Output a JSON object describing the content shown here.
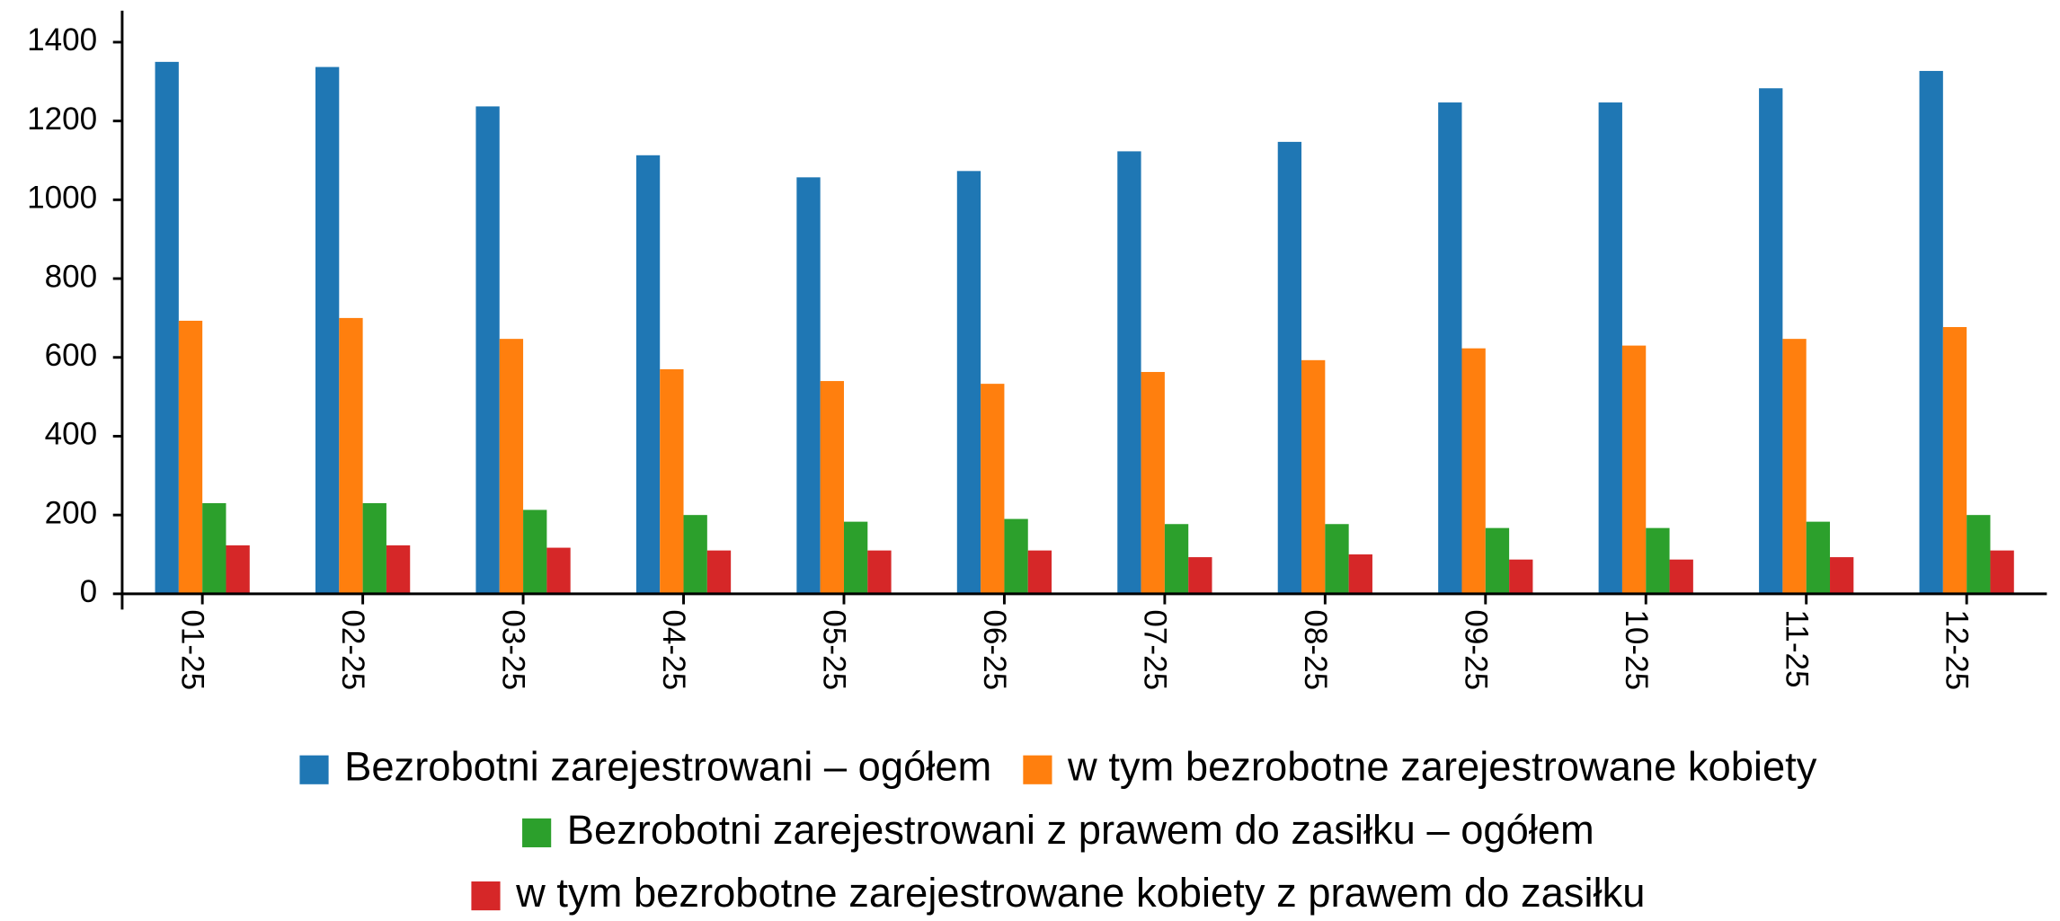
{
  "chart_data": {
    "type": "bar",
    "categories": [
      "01-25",
      "02-25",
      "03-25",
      "04-25",
      "05-25",
      "06-25",
      "07-25",
      "08-25",
      "09-25",
      "10-25",
      "11-25",
      "12-25"
    ],
    "series": [
      {
        "name": "Bezrobotni zarejestrowani – ogółem",
        "color": "#1f77b4",
        "values": [
          1350,
          1337,
          1237,
          1113,
          1057,
          1073,
          1123,
          1147,
          1247,
          1247,
          1283,
          1327
        ]
      },
      {
        "name": "w tym bezrobotne zarejestrowane kobiety",
        "color": "#ff7f0e",
        "values": [
          693,
          700,
          647,
          570,
          540,
          533,
          563,
          593,
          623,
          630,
          647,
          677
        ]
      },
      {
        "name": "Bezrobotni zarejestrowani z prawem do zasiłku – ogółem",
        "color": "#2ca02c",
        "values": [
          230,
          230,
          213,
          200,
          183,
          190,
          177,
          177,
          167,
          167,
          183,
          200
        ]
      },
      {
        "name": "w tym bezrobotne zarejestrowane kobiety z prawem do zasiłku",
        "color": "#d62728",
        "values": [
          123,
          123,
          117,
          110,
          110,
          110,
          93,
          100,
          87,
          87,
          93,
          110
        ]
      }
    ],
    "ylim": [
      0,
      1480
    ],
    "yticks": [
      0,
      200,
      400,
      600,
      800,
      1000,
      1200,
      1400
    ],
    "grid": false
  }
}
